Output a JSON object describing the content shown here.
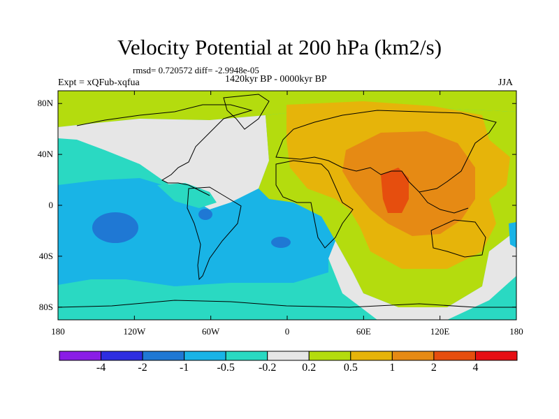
{
  "title": "Velocity Potential at 200 hPa (km2/s)",
  "stats": "rmsd= 0.720572  diff= -2.9948e-05",
  "left_label": "Expt = xQFub-xqfua",
  "center_label": "1420kyr BP - 0000kyr BP",
  "right_label": "JJA",
  "chart_data": {
    "type": "contour-map",
    "projection": "cylindrical-equidistant",
    "lon_range": [
      -180,
      180
    ],
    "lat_range": [
      -90,
      90
    ],
    "x_ticks": [
      {
        "lon": -180,
        "label": "180"
      },
      {
        "lon": -120,
        "label": "120W"
      },
      {
        "lon": -60,
        "label": "60W"
      },
      {
        "lon": 0,
        "label": "0"
      },
      {
        "lon": 60,
        "label": "60E"
      },
      {
        "lon": 120,
        "label": "120E"
      },
      {
        "lon": 180,
        "label": "180"
      }
    ],
    "y_ticks": [
      {
        "lat": 80,
        "label": "80N"
      },
      {
        "lat": 40,
        "label": "40N"
      },
      {
        "lat": 0,
        "label": "0"
      },
      {
        "lat": -40,
        "label": "40S"
      },
      {
        "lat": -80,
        "label": "80S"
      }
    ],
    "contour_levels": [
      -4,
      -2,
      -1,
      -0.5,
      -0.2,
      0.2,
      0.5,
      1,
      2,
      4
    ],
    "colorbar_labels": [
      "-4",
      "-2",
      "-1",
      "-0.5",
      "-0.2",
      "0.2",
      "0.5",
      "1",
      "2",
      "4"
    ],
    "colors": [
      "#8a1de6",
      "#2d2de0",
      "#1f78d4",
      "#19b4e6",
      "#2ad9c2",
      "#e6e6e6",
      "#b4dc0e",
      "#e6b40a",
      "#e68a14",
      "#e64e0e",
      "#e60f14"
    ],
    "field_summary": "Positive anomaly centred over South Asia / Indian Ocean (max 2-4 near 80E, 10N); negative anomaly over South Pacific and South America / South Atlantic (min -1 to -2 near 140W, 15S)"
  }
}
